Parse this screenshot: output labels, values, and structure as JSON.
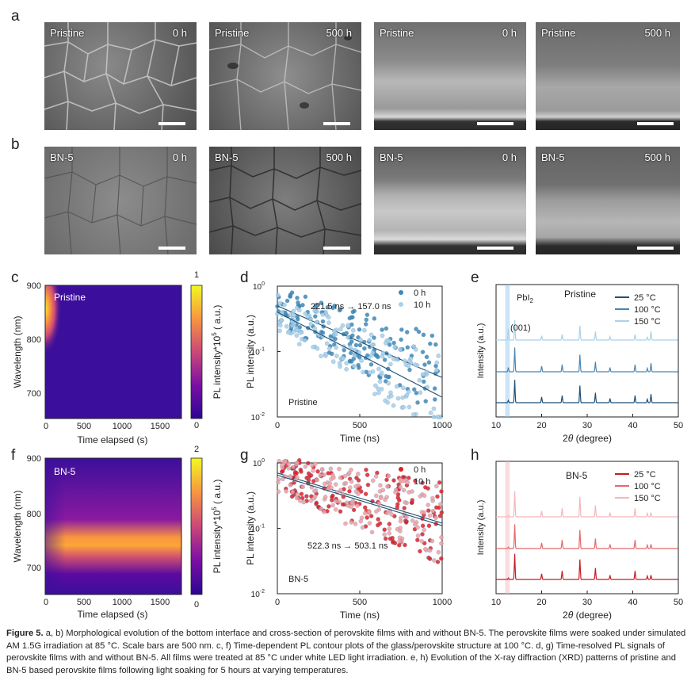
{
  "panels": {
    "a": "a",
    "b": "b",
    "c": "c",
    "d": "d",
    "e": "e",
    "f": "f",
    "g": "g",
    "h": "h"
  },
  "sem_row_a": [
    {
      "sample": "Pristine",
      "time": "0 h"
    },
    {
      "sample": "Pristine",
      "time": "500 h"
    },
    {
      "sample": "Pristine",
      "time": "0 h"
    },
    {
      "sample": "Pristine",
      "time": "500 h"
    }
  ],
  "sem_row_b": [
    {
      "sample": "BN-5",
      "time": "0 h"
    },
    {
      "sample": "BN-5",
      "time": "500 h"
    },
    {
      "sample": "BN-5",
      "time": "0 h"
    },
    {
      "sample": "BN-5",
      "time": "500 h"
    }
  ],
  "contour_c": {
    "label": "Pristine",
    "ylabel": "Wavelength (nm)",
    "xlabel": "Time elapsed (s)",
    "yticks": [
      "900",
      "800",
      "700"
    ],
    "xticks": [
      "0",
      "500",
      "1000",
      "1500"
    ],
    "cbar_label": "PL intensity*10",
    "cbar_exp": "5",
    "cbar_unit": " ( a.u.)",
    "cbar_max": "1",
    "cbar_min": "0"
  },
  "contour_f": {
    "label": "BN-5",
    "ylabel": "Wavelength (nm)",
    "xlabel": "Time elapsed (s)",
    "yticks": [
      "900",
      "800",
      "700"
    ],
    "xticks": [
      "0",
      "500",
      "1000",
      "1500"
    ],
    "cbar_label": "PL intensity*10",
    "cbar_exp": "5",
    "cbar_unit": " ( a.u.)",
    "cbar_max": "2",
    "cbar_min": "0"
  },
  "colors": {
    "pristine_0h": "#3d88b8",
    "pristine_10h": "#a8d0ec",
    "bn5_0h": "#e01f26",
    "bn5_10h": "#f0a0a4",
    "xrd_blue_25": "#1d4f78",
    "xrd_blue_100": "#4b86b4",
    "xrd_blue_150": "#a9d1ea",
    "xrd_red_25": "#c41c22",
    "xrd_red_100": "#e4676b",
    "xrd_red_150": "#f3b7b9"
  },
  "chart_data": [
    {
      "id": "d",
      "type": "scatter",
      "xlabel": "Time (ns)",
      "ylabel": "PL intensity (a.u.)",
      "xlim": [
        0,
        1000
      ],
      "ylim": [
        0.01,
        1
      ],
      "yscale": "log",
      "xticks": [
        "0",
        "500",
        "1000"
      ],
      "yticks": [
        "10",
        "10",
        "10"
      ],
      "ytick_exps": [
        "0",
        "-1",
        "-2"
      ],
      "annotation": "221.5 ns → 157.0 ns",
      "sample_label": "Pristine",
      "legend_position": "top-right",
      "series": [
        {
          "name": "0 h",
          "tau_ns": 221.5,
          "fit_endpoints": [
            [
              0,
              0.5
            ],
            [
              1000,
              0.04
            ]
          ]
        },
        {
          "name": "10 h",
          "tau_ns": 157.0,
          "fit_endpoints": [
            [
              0,
              0.4
            ],
            [
              1000,
              0.02
            ]
          ]
        }
      ]
    },
    {
      "id": "g",
      "type": "scatter",
      "xlabel": "Time (ns)",
      "ylabel": "PL intensity (a.u.)",
      "xlim": [
        0,
        1000
      ],
      "ylim": [
        0.01,
        1
      ],
      "yscale": "log",
      "xticks": [
        "0",
        "500",
        "1000"
      ],
      "yticks": [
        "10",
        "10",
        "10"
      ],
      "ytick_exps": [
        "0",
        "-1",
        "-2"
      ],
      "annotation": "522.3 ns → 503.1 ns",
      "sample_label": "BN-5",
      "legend_position": "top-right",
      "series": [
        {
          "name": "0 h",
          "tau_ns": 522.3,
          "fit_endpoints": [
            [
              0,
              0.7
            ],
            [
              1000,
              0.12
            ]
          ]
        },
        {
          "name": "10 h",
          "tau_ns": 503.1,
          "fit_endpoints": [
            [
              0,
              0.65
            ],
            [
              1000,
              0.11
            ]
          ]
        }
      ]
    },
    {
      "id": "e",
      "type": "line",
      "xlabel": "2θ (degree)",
      "xlabel_prefix": "2",
      "xlabel_theta": "θ",
      "xlabel_suffix": " (degree)",
      "ylabel": "Intensity (a.u.)",
      "xlim": [
        10,
        50
      ],
      "xticks": [
        "10",
        "20",
        "30",
        "40",
        "50"
      ],
      "sample_label": "Pristine",
      "pbi2_label": "PbI",
      "pbi2_sub": "2",
      "peak_label": "(001)",
      "highlight_2theta": [
        12,
        13
      ],
      "legend_position": "top-right",
      "series": [
        {
          "name": "25 °C",
          "peaks": [
            [
              12.7,
              0.08
            ],
            [
              14.1,
              0.8
            ],
            [
              20.0,
              0.2
            ],
            [
              24.5,
              0.25
            ],
            [
              28.4,
              0.6
            ],
            [
              31.8,
              0.35
            ],
            [
              35.0,
              0.15
            ],
            [
              40.5,
              0.25
            ],
            [
              43.2,
              0.12
            ],
            [
              44.0,
              0.3
            ]
          ]
        },
        {
          "name": "100 °C",
          "peaks": [
            [
              12.7,
              0.15
            ],
            [
              14.1,
              0.85
            ],
            [
              20.0,
              0.2
            ],
            [
              24.5,
              0.25
            ],
            [
              28.4,
              0.6
            ],
            [
              31.8,
              0.35
            ],
            [
              35.0,
              0.15
            ],
            [
              40.5,
              0.25
            ],
            [
              43.2,
              0.12
            ],
            [
              44.0,
              0.3
            ]
          ]
        },
        {
          "name": "150 °C",
          "peaks": [
            [
              12.7,
              0.4
            ],
            [
              14.1,
              0.7
            ],
            [
              20.0,
              0.15
            ],
            [
              24.5,
              0.2
            ],
            [
              28.4,
              0.5
            ],
            [
              31.8,
              0.3
            ],
            [
              35.0,
              0.12
            ],
            [
              40.5,
              0.2
            ],
            [
              43.2,
              0.1
            ],
            [
              44.0,
              0.3
            ]
          ]
        }
      ]
    },
    {
      "id": "h",
      "type": "line",
      "xlabel": "2θ (degree)",
      "xlabel_prefix": "2",
      "xlabel_theta": "θ",
      "xlabel_suffix": " (degree)",
      "ylabel": "Intensity (a.u.)",
      "xlim": [
        10,
        50
      ],
      "xticks": [
        "10",
        "20",
        "30",
        "40",
        "50"
      ],
      "sample_label": "BN-5",
      "highlight_2theta": [
        12,
        13
      ],
      "legend_position": "top-right",
      "series": [
        {
          "name": "25 °C",
          "peaks": [
            [
              12.7,
              0.05
            ],
            [
              14.1,
              0.9
            ],
            [
              20.0,
              0.2
            ],
            [
              24.5,
              0.3
            ],
            [
              28.4,
              0.7
            ],
            [
              31.8,
              0.4
            ],
            [
              35.0,
              0.15
            ],
            [
              40.5,
              0.3
            ],
            [
              43.2,
              0.12
            ],
            [
              44.0,
              0.15
            ]
          ]
        },
        {
          "name": "100 °C",
          "peaks": [
            [
              12.7,
              0.05
            ],
            [
              14.1,
              0.85
            ],
            [
              20.0,
              0.2
            ],
            [
              24.5,
              0.3
            ],
            [
              28.4,
              0.65
            ],
            [
              31.8,
              0.35
            ],
            [
              35.0,
              0.15
            ],
            [
              40.5,
              0.3
            ],
            [
              43.2,
              0.12
            ],
            [
              44.0,
              0.15
            ]
          ]
        },
        {
          "name": "150 °C",
          "peaks": [
            [
              12.7,
              0.05
            ],
            [
              14.1,
              0.9
            ],
            [
              20.0,
              0.2
            ],
            [
              24.5,
              0.3
            ],
            [
              28.4,
              0.7
            ],
            [
              31.8,
              0.4
            ],
            [
              35.0,
              0.15
            ],
            [
              40.5,
              0.3
            ],
            [
              43.2,
              0.12
            ],
            [
              44.0,
              0.15
            ]
          ]
        }
      ]
    }
  ],
  "caption": {
    "label": "Figure 5.",
    "text": "  a, b) Morphological evolution of the bottom interface and cross-section of perovskite films with and without BN-5. The perovskite films were soaked under simulated AM 1.5G irradiation at 85 °C. Scale bars are 500 nm. c, f) Time-dependent PL contour plots of the glass/perovskite structure at 100 °C. d, g) Time-resolved PL signals of perovskite films with and without BN-5. All films were treated at 85 °C under white LED light irradiation. e, h) Evolution of the X-ray diffraction (XRD) patterns of pristine and BN-5 based perovskite films following light soaking for 5 hours at varying temperatures."
  }
}
